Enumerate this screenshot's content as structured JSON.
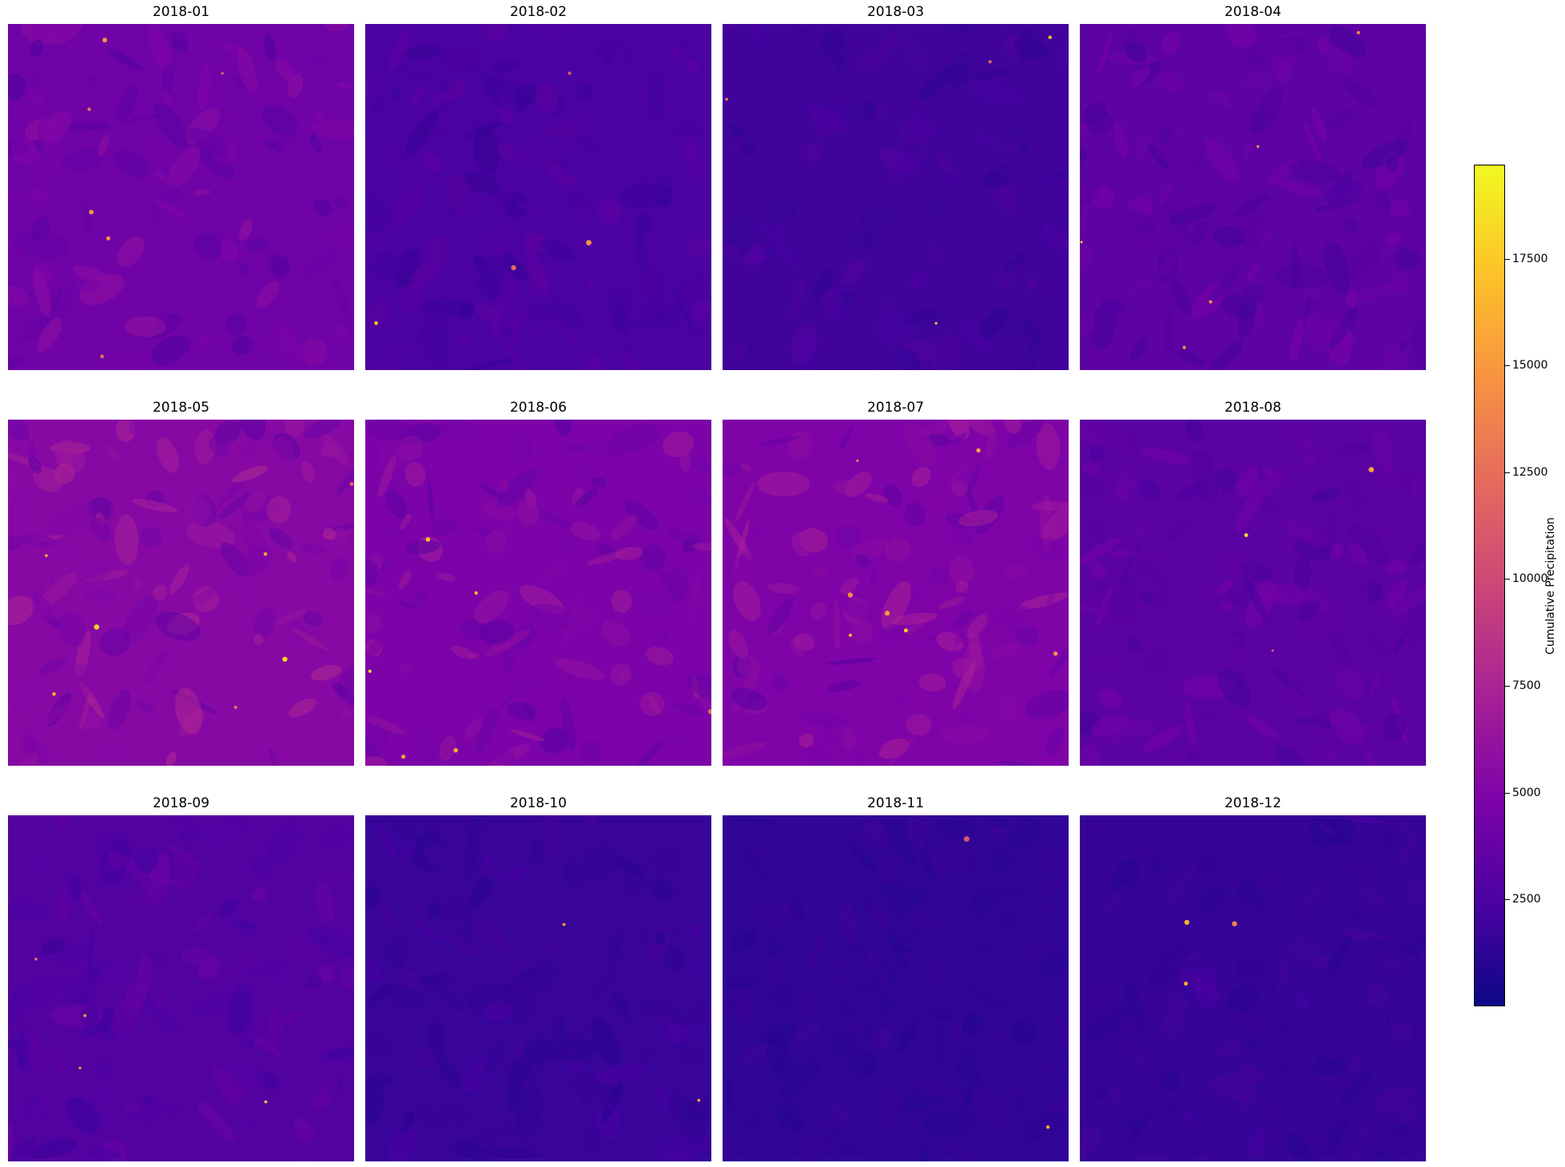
{
  "chart_data": {
    "type": "heatmap",
    "layout": "3x4 small multiples",
    "colormap": "plasma",
    "panels": [
      {
        "title": "2018-01",
        "mean_intensity": 4200,
        "hotspots": 6
      },
      {
        "title": "2018-02",
        "mean_intensity": 2400,
        "hotspots": 4
      },
      {
        "title": "2018-03",
        "mean_intensity": 2000,
        "hotspots": 4
      },
      {
        "title": "2018-04",
        "mean_intensity": 3300,
        "hotspots": 5
      },
      {
        "title": "2018-05",
        "mean_intensity": 5400,
        "hotspots": 7
      },
      {
        "title": "2018-06",
        "mean_intensity": 4800,
        "hotspots": 6
      },
      {
        "title": "2018-07",
        "mean_intensity": 5000,
        "hotspots": 7
      },
      {
        "title": "2018-08",
        "mean_intensity": 3200,
        "hotspots": 3
      },
      {
        "title": "2018-09",
        "mean_intensity": 2800,
        "hotspots": 4
      },
      {
        "title": "2018-10",
        "mean_intensity": 1700,
        "hotspots": 2
      },
      {
        "title": "2018-11",
        "mean_intensity": 1400,
        "hotspots": 2
      },
      {
        "title": "2018-12",
        "mean_intensity": 1600,
        "hotspots": 3
      }
    ],
    "colorbar": {
      "label": "Cumulative Precipitation",
      "range": [
        0,
        19700
      ],
      "ticks": [
        {
          "value": 2500,
          "label": "2500"
        },
        {
          "value": 5000,
          "label": "5000"
        },
        {
          "value": 7500,
          "label": "7500"
        },
        {
          "value": 10000,
          "label": "10000"
        },
        {
          "value": 12500,
          "label": "12500"
        },
        {
          "value": 15000,
          "label": "15000"
        },
        {
          "value": 17500,
          "label": "17500"
        }
      ]
    },
    "grid": false,
    "axes_visible": false
  }
}
